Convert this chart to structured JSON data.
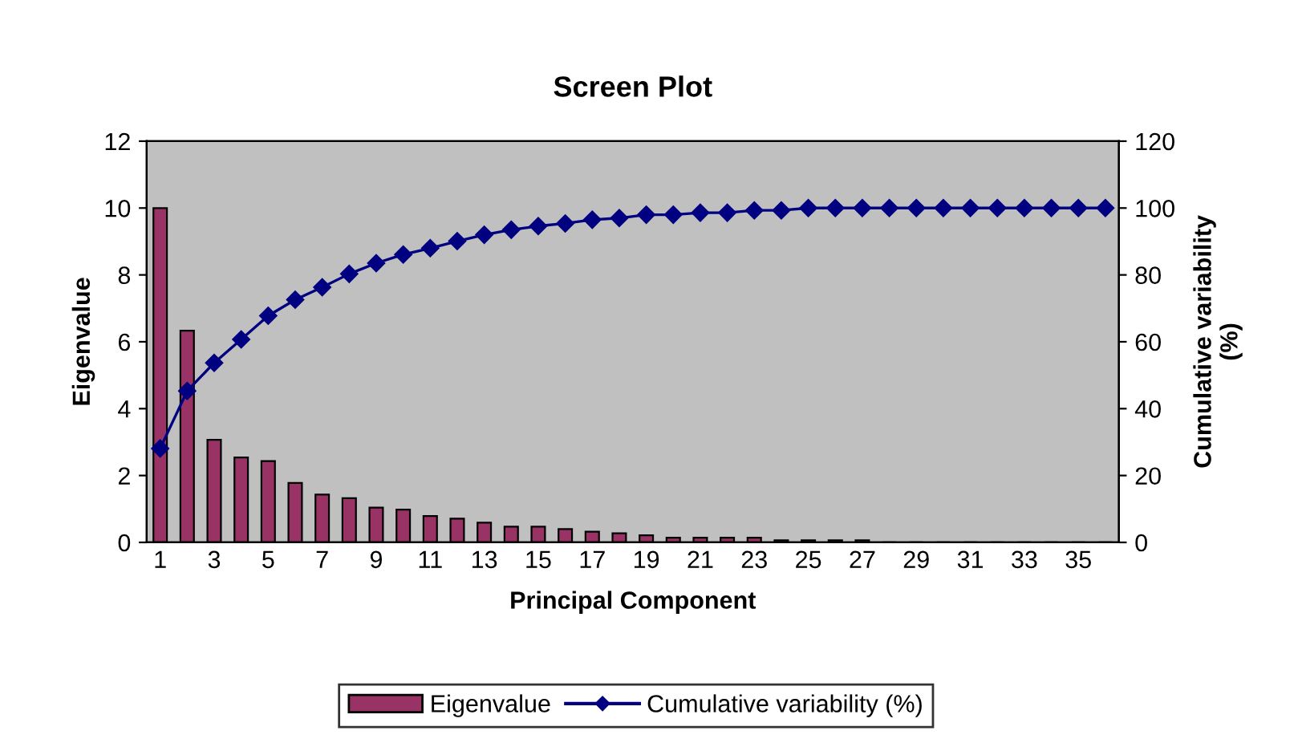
{
  "chart_data": {
    "type": "bar",
    "title": "Screen Plot",
    "xlabel": "Principal Component",
    "ylabel": "Eigenvalue",
    "y2label": "Cumulative variability\n(%)",
    "categories": [
      "1",
      null,
      "3",
      null,
      "5",
      null,
      "7",
      null,
      "9",
      null,
      "11",
      null,
      "13",
      null,
      "15",
      null,
      "17",
      null,
      "19",
      null,
      "21",
      null,
      "23",
      null,
      "25",
      null,
      "27",
      null,
      "29",
      null,
      "31",
      null,
      "33",
      null,
      "35",
      null
    ],
    "series": [
      {
        "name": "Eigenvalue",
        "color": "#993366",
        "values": [
          10.0,
          6.33,
          3.07,
          2.54,
          2.43,
          1.78,
          1.43,
          1.32,
          1.04,
          0.98,
          0.79,
          0.71,
          0.59,
          0.47,
          0.47,
          0.4,
          0.32,
          0.27,
          0.21,
          0.14,
          0.14,
          0.14,
          0.14,
          0.06,
          0.06,
          0.06,
          0.06,
          0,
          0,
          0,
          0,
          0,
          0,
          0,
          0,
          0
        ]
      },
      {
        "name": "Cumulative variability (%)",
        "type": "line",
        "axis": "y2",
        "color": "#000080",
        "marker": "diamond",
        "values": [
          28.1,
          45.3,
          53.7,
          60.7,
          67.8,
          72.6,
          76.3,
          80.3,
          83.5,
          86.1,
          88.0,
          90.1,
          92.0,
          93.5,
          94.6,
          95.4,
          96.5,
          97.0,
          98.0,
          98.0,
          98.6,
          98.6,
          99.3,
          99.3,
          100,
          100,
          100,
          100,
          100,
          100,
          100,
          100,
          100,
          100,
          100,
          100
        ]
      }
    ],
    "ylim": [
      0,
      12
    ],
    "yticks": [
      0,
      2,
      4,
      6,
      8,
      10,
      12
    ],
    "y2lim": [
      0,
      120
    ],
    "y2ticks": [
      0,
      20,
      40,
      60,
      80,
      100,
      120
    ],
    "grid": false,
    "legend": "bottom"
  }
}
